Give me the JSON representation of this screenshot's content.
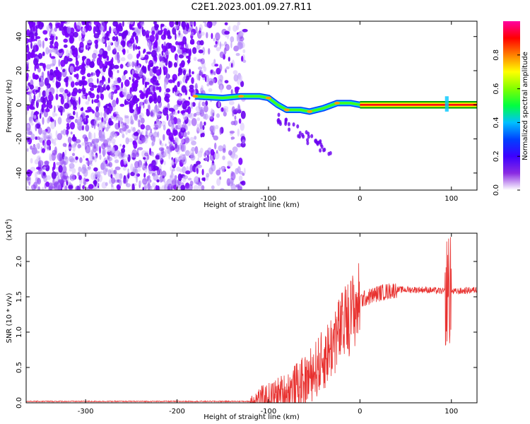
{
  "figure": {
    "title": "C2E1.2023.001.09.27.R11"
  },
  "chart_data": [
    {
      "type": "heatmap",
      "xlabel": "Height of straight line (km)",
      "ylabel": "Frequency (Hz)",
      "xlim": [
        -365,
        128
      ],
      "ylim": [
        -50,
        49
      ],
      "xticks": [
        -300,
        -200,
        -100,
        0,
        100
      ],
      "yticks": [
        -40,
        -20,
        0,
        20,
        40
      ],
      "grid": false,
      "colorbar": {
        "label": "Normalized spectral amplitude",
        "range": [
          0,
          1
        ],
        "ticks": [
          "0.0",
          "0.2",
          "0.4",
          "0.6",
          "0.8"
        ],
        "colors": [
          "#ffffff",
          "#8a2be2",
          "#3c00ff",
          "#0040ff",
          "#00c0ff",
          "#00ff40",
          "#80ff00",
          "#ffff00",
          "#ff8000",
          "#ff0000",
          "#ff00a0"
        ]
      },
      "signal_track": [
        {
          "x": -180,
          "y": 5
        },
        {
          "x": -150,
          "y": 4
        },
        {
          "x": -130,
          "y": 5
        },
        {
          "x": -110,
          "y": 5
        },
        {
          "x": -100,
          "y": 4
        },
        {
          "x": -90,
          "y": 0
        },
        {
          "x": -80,
          "y": -3
        },
        {
          "x": -65,
          "y": -3
        },
        {
          "x": -55,
          "y": -4
        },
        {
          "x": -40,
          "y": -2
        },
        {
          "x": -25,
          "y": 1
        },
        {
          "x": -10,
          "y": 1
        },
        {
          "x": 0,
          "y": 0
        },
        {
          "x": 50,
          "y": 0
        },
        {
          "x": 128,
          "y": 0
        }
      ],
      "noise_region_x": [
        -365,
        -125
      ]
    },
    {
      "type": "line",
      "xlabel": "Height of straight line (km)",
      "ylabel": "SNR (10 * v/v)",
      "yscale_label": "(x10",
      "yscale_exponent": "4",
      "yscale_suffix": ")",
      "xlim": [
        -365,
        128
      ],
      "ylim": [
        0,
        2.4
      ],
      "xticks": [
        -300,
        -200,
        -100,
        0,
        100
      ],
      "yticks": [
        "0.0",
        "0.5",
        "1.0",
        "1.5",
        "2.0"
      ],
      "series": [
        {
          "color": "#e8312f",
          "envelope": [
            [
              -365,
              0.02
            ],
            [
              -120,
              0.02
            ],
            [
              -100,
              0.06
            ],
            [
              -80,
              0.15
            ],
            [
              -60,
              0.3
            ],
            [
              -40,
              0.6
            ],
            [
              -25,
              0.95
            ],
            [
              -10,
              1.25
            ],
            [
              0,
              1.45
            ],
            [
              20,
              1.55
            ],
            [
              40,
              1.6
            ],
            [
              70,
              1.6
            ],
            [
              90,
              1.58
            ],
            [
              100,
              1.57
            ],
            [
              128,
              1.6
            ]
          ]
        }
      ]
    }
  ]
}
